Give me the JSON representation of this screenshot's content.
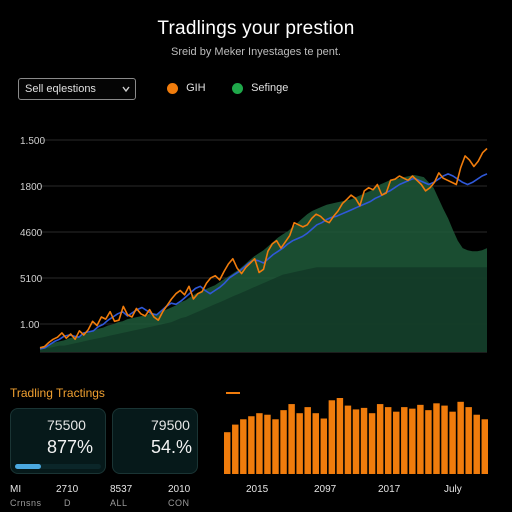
{
  "header": {
    "title": "Tradlings your prestion",
    "subtitle": "Sreid by Meker Inyestages te pent."
  },
  "controls": {
    "dropdown_label": "Sell eqlestions",
    "legend": [
      {
        "label": "GIH",
        "color": "#f07c0c"
      },
      {
        "label": "Sefinge",
        "color": "#1fa84a"
      }
    ]
  },
  "colors": {
    "orange": "#f07c0c",
    "blue": "#2f58d8",
    "green_area": "#1f5a3a",
    "green_area_dark": "#133a28",
    "background": "#000000"
  },
  "chart_data": [
    {
      "type": "line",
      "y_tick_labels": [
        "1.500",
        "1800",
        "4600",
        "5100",
        "1.00"
      ],
      "series": [
        {
          "color": "#f07c0c",
          "values": [
            0.04,
            0.05,
            0.09,
            0.12,
            0.14,
            0.18,
            0.13,
            0.17,
            0.12,
            0.2,
            0.16,
            0.21,
            0.29,
            0.25,
            0.33,
            0.31,
            0.38,
            0.29,
            0.3,
            0.43,
            0.35,
            0.33,
            0.41,
            0.36,
            0.34,
            0.4,
            0.33,
            0.3,
            0.38,
            0.44,
            0.5,
            0.55,
            0.58,
            0.54,
            0.62,
            0.5,
            0.55,
            0.57,
            0.65,
            0.7,
            0.72,
            0.68,
            0.76,
            0.83,
            0.88,
            0.79,
            0.74,
            0.8,
            0.84,
            0.88,
            0.75,
            0.78,
            0.95,
            1.02,
            1.05,
            0.98,
            1.04,
            1.1,
            1.22,
            1.2,
            1.18,
            1.2,
            1.26,
            1.3,
            1.28,
            1.24,
            1.22,
            1.28,
            1.33,
            1.4,
            1.44,
            1.48,
            1.45,
            1.38,
            1.52,
            1.55,
            1.53,
            1.58,
            1.48,
            1.5,
            1.62,
            1.63,
            1.66,
            1.64,
            1.62,
            1.66,
            1.62,
            1.58,
            1.52,
            1.55,
            1.6,
            1.69,
            1.64,
            1.62,
            1.6,
            1.58,
            1.74,
            1.85,
            1.81,
            1.75,
            1.8,
            1.88,
            1.92
          ]
        },
        {
          "color": "#2f58d8",
          "values": [
            0.03,
            0.04,
            0.07,
            0.1,
            0.12,
            0.15,
            0.16,
            0.15,
            0.14,
            0.18,
            0.19,
            0.2,
            0.24,
            0.26,
            0.3,
            0.33,
            0.36,
            0.38,
            0.34,
            0.37,
            0.4,
            0.42,
            0.39,
            0.36,
            0.35,
            0.39,
            0.43,
            0.46,
            0.45,
            0.48,
            0.52,
            0.56,
            0.6,
            0.62,
            0.58,
            0.55,
            0.58,
            0.61,
            0.65,
            0.7,
            0.73,
            0.76,
            0.8,
            0.84,
            0.87,
            0.86,
            0.84,
            0.88,
            0.92,
            0.95,
            0.98,
            1.02,
            1.05,
            1.07,
            1.09,
            1.12,
            1.16,
            1.2,
            1.22,
            1.25,
            1.27,
            1.28,
            1.3,
            1.32,
            1.34,
            1.36,
            1.38,
            1.4,
            1.42,
            1.45,
            1.47,
            1.5,
            1.52,
            1.55,
            1.58,
            1.6,
            1.62,
            1.64,
            1.62,
            1.6,
            1.58,
            1.6,
            1.63,
            1.66,
            1.68,
            1.66,
            1.63,
            1.6,
            1.58,
            1.6,
            1.63,
            1.66,
            1.68
          ]
        },
        {
          "color": "#1f5a3a",
          "type": "area",
          "values": [
            0.05,
            0.06,
            0.07,
            0.09,
            0.1,
            0.11,
            0.13,
            0.14,
            0.15,
            0.17,
            0.18,
            0.2,
            0.22,
            0.23,
            0.25,
            0.26,
            0.28,
            0.29,
            0.31,
            0.32,
            0.33,
            0.34,
            0.35,
            0.37,
            0.36,
            0.38,
            0.4,
            0.42,
            0.44,
            0.47,
            0.49,
            0.52,
            0.55,
            0.57,
            0.59,
            0.61,
            0.63,
            0.66,
            0.69,
            0.72,
            0.75,
            0.78,
            0.82,
            0.86,
            0.9,
            0.93,
            0.96,
            1.0,
            1.04,
            1.08,
            1.11,
            1.14,
            1.18,
            1.22,
            1.26,
            1.3,
            1.33,
            1.35,
            1.37,
            1.39,
            1.4,
            1.41,
            1.42,
            1.43,
            1.44,
            1.46,
            1.48,
            1.5,
            1.52,
            1.55,
            1.58,
            1.6,
            1.62,
            1.63,
            1.64,
            1.65,
            1.66,
            1.67,
            1.66,
            1.65,
            1.6,
            1.55,
            1.45,
            1.35,
            1.26,
            1.15,
            1.05,
            0.98,
            0.96,
            0.95,
            0.95,
            0.96,
            0.98
          ]
        },
        {
          "color": "#133a28",
          "type": "area",
          "values": [
            0.02,
            0.03,
            0.04,
            0.05,
            0.06,
            0.06,
            0.07,
            0.08,
            0.09,
            0.1,
            0.11,
            0.12,
            0.13,
            0.14,
            0.15,
            0.16,
            0.17,
            0.18,
            0.19,
            0.2,
            0.21,
            0.22,
            0.23,
            0.24,
            0.25,
            0.26,
            0.27,
            0.28,
            0.3,
            0.32,
            0.33,
            0.35,
            0.37,
            0.39,
            0.41,
            0.43,
            0.45,
            0.47,
            0.49,
            0.51,
            0.53,
            0.55,
            0.57,
            0.59,
            0.61,
            0.63,
            0.65,
            0.67,
            0.69,
            0.71,
            0.73,
            0.74,
            0.75,
            0.76,
            0.77,
            0.78,
            0.79,
            0.8,
            0.8,
            0.8,
            0.8,
            0.8,
            0.8,
            0.8,
            0.8,
            0.8,
            0.8,
            0.8,
            0.8,
            0.8,
            0.8,
            0.8,
            0.8,
            0.8,
            0.8,
            0.8,
            0.8,
            0.8,
            0.8,
            0.8,
            0.8,
            0.8,
            0.8,
            0.8,
            0.8,
            0.8,
            0.8,
            0.8,
            0.8,
            0.8,
            0.8,
            0.8,
            0.8
          ]
        }
      ]
    },
    {
      "type": "bar",
      "x_tick_labels": [
        "2015",
        "2097",
        "2017",
        "July"
      ],
      "color": "#f07c0c",
      "values": [
        0.55,
        0.65,
        0.72,
        0.76,
        0.8,
        0.78,
        0.72,
        0.84,
        0.92,
        0.8,
        0.88,
        0.8,
        0.73,
        0.97,
        1.0,
        0.9,
        0.85,
        0.87,
        0.8,
        0.92,
        0.88,
        0.82,
        0.88,
        0.86,
        0.91,
        0.84,
        0.93,
        0.9,
        0.82,
        0.95,
        0.88,
        0.78,
        0.72
      ]
    }
  ],
  "section": {
    "title": "Tradling Tractings"
  },
  "cards": [
    {
      "value": "75500",
      "percent": "877%",
      "progress": 0.3
    },
    {
      "value": "79500",
      "percent": "54.%",
      "progress": 0
    }
  ],
  "footer_stats": [
    {
      "label": "MI",
      "sub": "Crnsns"
    },
    {
      "label": "2710",
      "sub": "D"
    },
    {
      "label": "8537",
      "sub": "ALL"
    },
    {
      "label": "2010",
      "sub": "CON"
    }
  ]
}
